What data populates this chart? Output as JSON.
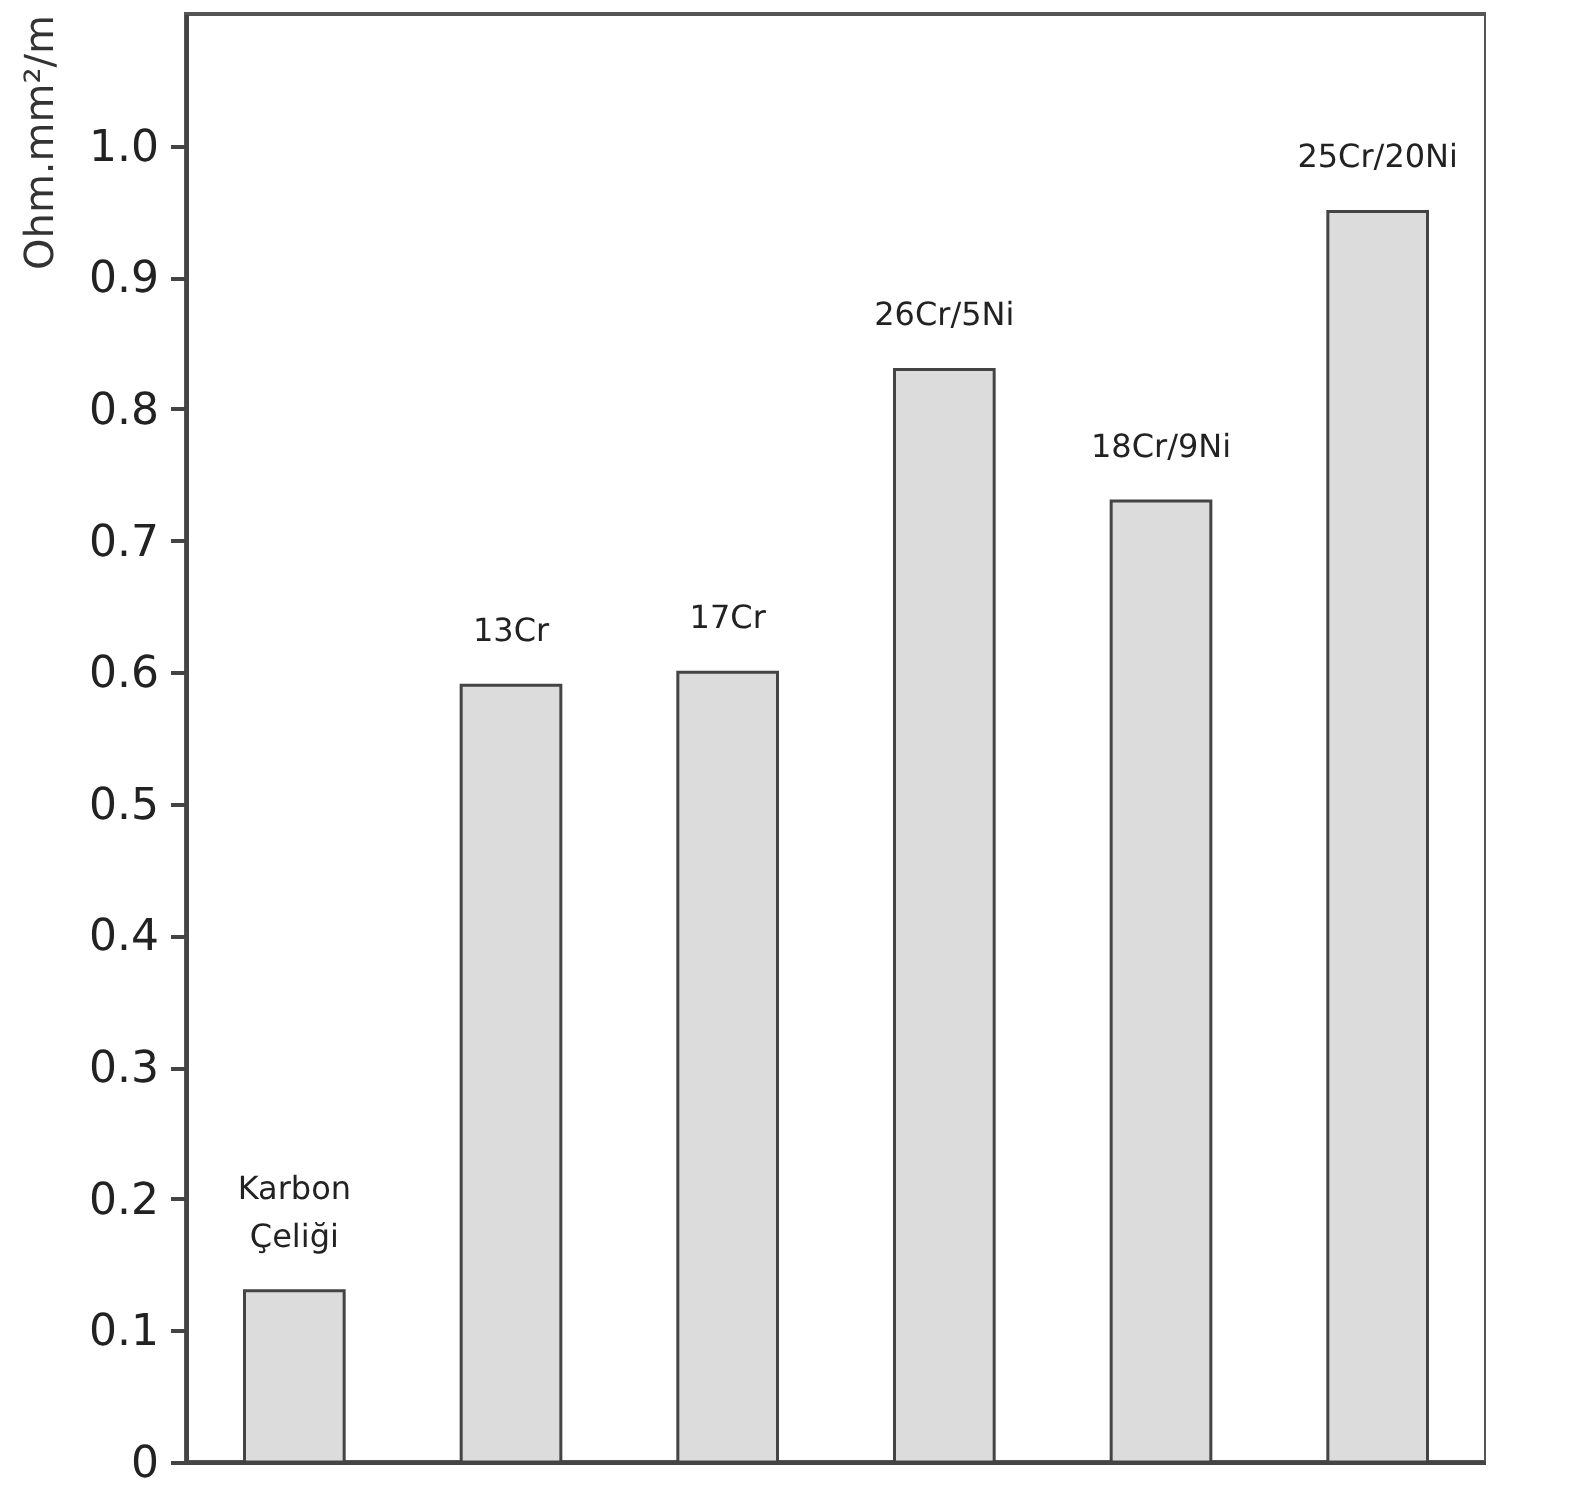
{
  "chart_data": {
    "type": "bar",
    "ylabel": "Ohm.mm²/m",
    "categories": [
      "Karbon Çeliği",
      "13Cr",
      "17Cr",
      "26Cr/5Ni",
      "18Cr/9Ni",
      "25Cr/20Ni"
    ],
    "values": [
      0.13,
      0.59,
      0.6,
      0.83,
      0.73,
      0.95
    ],
    "color": "#dcdcdc",
    "ylim": [
      0,
      1.1
    ],
    "yticks": [
      0,
      0.1,
      0.2,
      0.3,
      0.4,
      0.5,
      0.6,
      0.7,
      0.8,
      0.9,
      {
        "value": 1,
        "label": "1.0"
      }
    ],
    "tick_labels": "y",
    "grid": false
  }
}
